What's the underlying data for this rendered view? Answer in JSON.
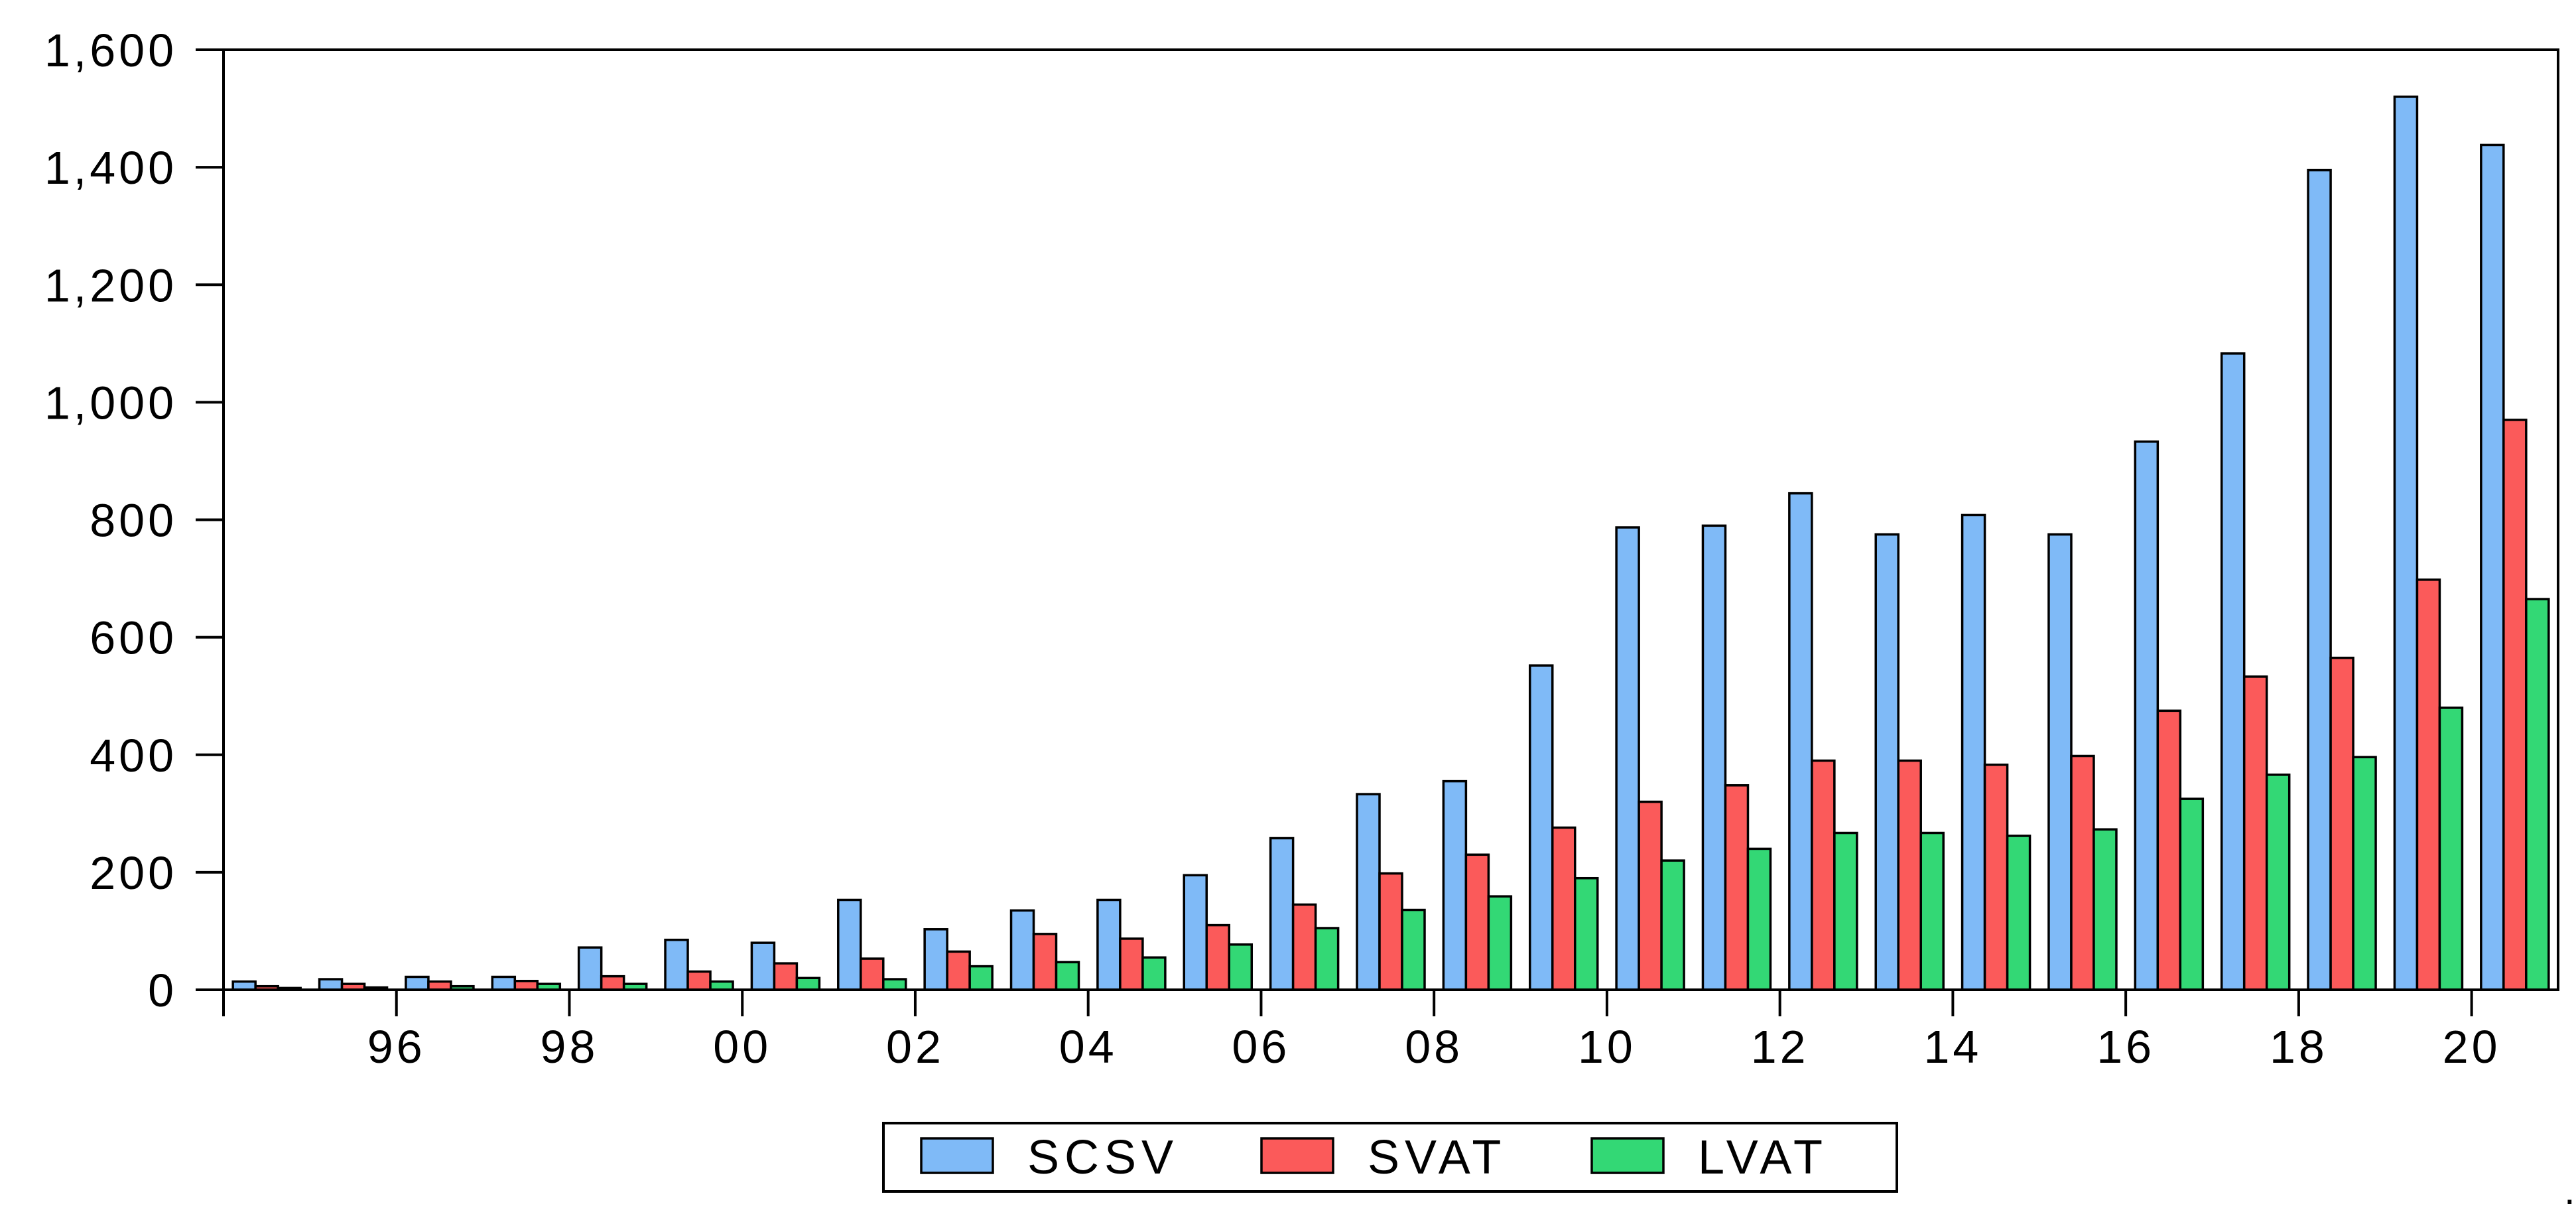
{
  "chart_data": {
    "type": "bar",
    "title": "",
    "xlabel": "",
    "ylabel": "",
    "ylim": [
      0,
      1600
    ],
    "yticks": [
      0,
      200,
      400,
      600,
      800,
      1000,
      1200,
      1400,
      1600
    ],
    "ytick_labels": [
      "0",
      "200",
      "400",
      "600",
      "800",
      "1,000",
      "1,200",
      "1,400",
      "1,600"
    ],
    "categories": [
      "1995",
      "1996",
      "1997",
      "1998",
      "1999",
      "2000",
      "2001",
      "2002",
      "2003",
      "2004",
      "2005",
      "2006",
      "2007",
      "2008",
      "2009",
      "2010",
      "2011",
      "2012",
      "2013",
      "2014",
      "2015",
      "2016",
      "2017",
      "2018",
      "2019",
      "2020",
      "2021"
    ],
    "xtick_labels": [
      "96",
      "98",
      "00",
      "02",
      "04",
      "06",
      "08",
      "10",
      "12",
      "14",
      "16",
      "18",
      "20"
    ],
    "legend_position": "bottom-center",
    "grid": false,
    "series": [
      {
        "name": "SCSV",
        "color": "#7fbaf7",
        "values": [
          14,
          18,
          22,
          22,
          72,
          85,
          80,
          153,
          103,
          135,
          153,
          195,
          258,
          333,
          355,
          552,
          787,
          790,
          845,
          775,
          808,
          775,
          933,
          1083,
          1395,
          1520,
          1438
        ]
      },
      {
        "name": "SVAT",
        "color": "#fb5a5a",
        "values": [
          6,
          10,
          14,
          15,
          23,
          31,
          45,
          53,
          65,
          95,
          87,
          110,
          145,
          198,
          230,
          276,
          320,
          348,
          390,
          390,
          383,
          398,
          475,
          533,
          565,
          698,
          970
        ]
      },
      {
        "name": "LVAT",
        "color": "#33d875",
        "values": [
          3,
          4,
          6,
          10,
          10,
          14,
          20,
          18,
          40,
          47,
          55,
          77,
          105,
          136,
          159,
          190,
          220,
          240,
          267,
          267,
          262,
          273,
          325,
          366,
          396,
          480,
          665
        ]
      }
    ]
  },
  "corner_mark": "."
}
